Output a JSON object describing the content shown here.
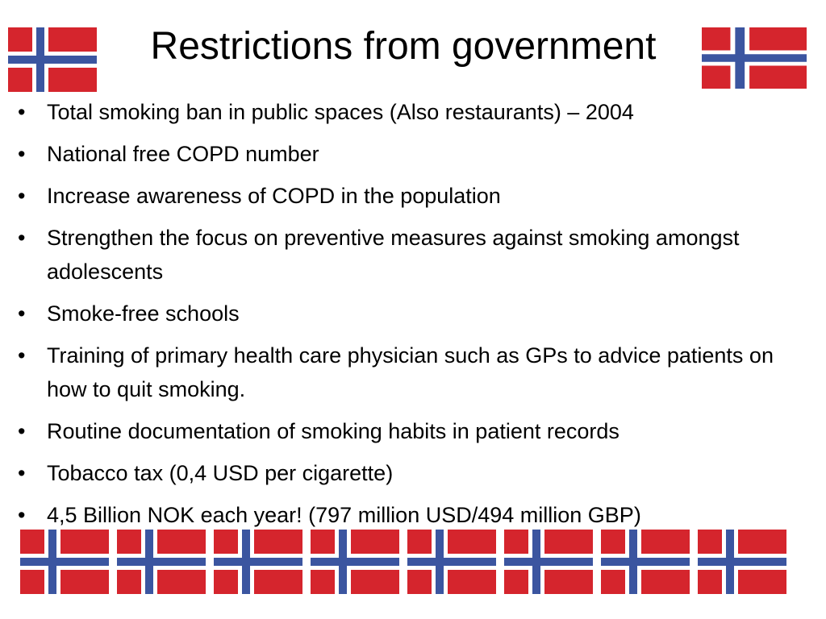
{
  "slide": {
    "title": "Restrictions from government",
    "bullets": [
      "Total smoking ban in public spaces (Also restaurants) – 2004",
      "National free COPD number",
      "Increase awareness of COPD in the population",
      "Strengthen the focus on preventive measures against smoking amongst adolescents",
      "Smoke-free schools",
      "Training of primary health care physician such as GPs to advice patients on how to quit smoking.",
      "Routine documentation of smoking habits in patient records",
      "Tobacco tax (0,4 USD per cigarette)",
      "4,5 Billion NOK each year! (797 million USD/494 million GBP)"
    ],
    "bullet_glyph": "•"
  },
  "flag": {
    "icon": "norway-flag-icon",
    "colors": {
      "red": "#d5252d",
      "white": "#ffffff",
      "blue": "#3b55a0"
    }
  }
}
